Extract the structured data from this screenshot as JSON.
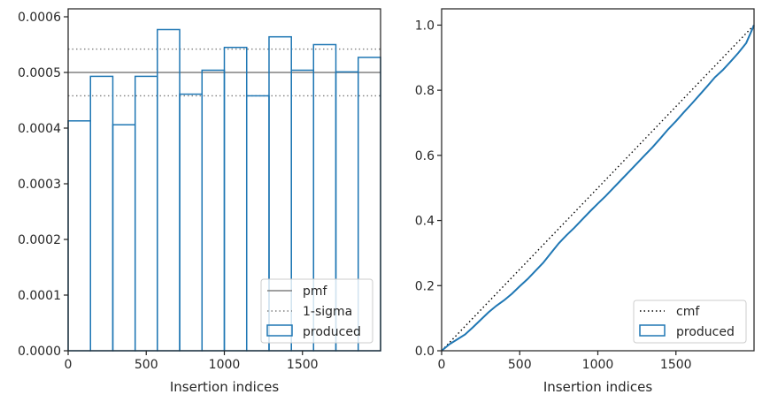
{
  "chart_data": [
    {
      "type": "step-histogram",
      "xlabel": "Insertion indices",
      "ylabel": "",
      "xlim": [
        0,
        2000
      ],
      "ylim": [
        0,
        0.0006
      ],
      "xticks": [
        0,
        500,
        1000,
        1500
      ],
      "xtick_labels": [
        "0",
        "500",
        "1000",
        "1500"
      ],
      "yticks": [
        0,
        0.0001,
        0.0002,
        0.0003,
        0.0004,
        0.0005,
        0.0006
      ],
      "ytick_labels": [
        "0.0000",
        "0.0001",
        "0.0002",
        "0.0003",
        "0.0004",
        "0.0005",
        "0.0006"
      ],
      "bin_edges": [
        0,
        143,
        286,
        429,
        571,
        714,
        857,
        1000,
        1143,
        1286,
        1429,
        1571,
        1714,
        1857,
        2000
      ],
      "series": [
        {
          "name": "produced",
          "style": "step",
          "color": "#1f77b4",
          "values": [
            0.000413,
            0.000493,
            0.000406,
            0.000493,
            0.000577,
            0.000461,
            0.000504,
            0.000545,
            0.000458,
            0.000564,
            0.000504,
            0.00055,
            0.000501,
            0.000527
          ]
        }
      ],
      "reference_lines": [
        {
          "name": "pmf",
          "y": 0.0005,
          "style": "solid",
          "color": "#808080"
        },
        {
          "name": "1-sigma",
          "y": 0.000542,
          "style": "dotted",
          "color": "#808080"
        },
        {
          "name": "",
          "y": 0.000458,
          "style": "dotted",
          "color": "#808080"
        }
      ],
      "legend": {
        "position": "lower-right",
        "entries": [
          "pmf",
          "1-sigma",
          "produced"
        ]
      },
      "grid": false
    },
    {
      "type": "line",
      "xlabel": "Insertion indices",
      "ylabel": "",
      "xlim": [
        0,
        2000
      ],
      "ylim": [
        0,
        1.05
      ],
      "xticks": [
        0,
        500,
        1000,
        1500
      ],
      "xtick_labels": [
        "0",
        "500",
        "1000",
        "1500"
      ],
      "yticks": [
        0,
        0.2,
        0.4,
        0.6,
        0.8,
        1.0
      ],
      "ytick_labels": [
        "0.0",
        "0.2",
        "0.4",
        "0.6",
        "0.8",
        "1.0"
      ],
      "series": [
        {
          "name": "cmf",
          "style": "dotted",
          "color": "#000000",
          "x": [
            0,
            2000
          ],
          "y": [
            0,
            1.0
          ]
        },
        {
          "name": "produced",
          "style": "solid",
          "color": "#1f77b4",
          "x": [
            0,
            50,
            100,
            150,
            200,
            250,
            300,
            350,
            400,
            450,
            500,
            550,
            600,
            650,
            700,
            750,
            800,
            850,
            900,
            950,
            1000,
            1050,
            1100,
            1150,
            1200,
            1250,
            1300,
            1350,
            1400,
            1450,
            1500,
            1550,
            1600,
            1650,
            1700,
            1750,
            1800,
            1850,
            1900,
            1950,
            2000
          ],
          "y": [
            0,
            0.02,
            0.035,
            0.05,
            0.072,
            0.095,
            0.118,
            0.138,
            0.155,
            0.175,
            0.198,
            0.22,
            0.245,
            0.27,
            0.3,
            0.33,
            0.355,
            0.378,
            0.403,
            0.428,
            0.452,
            0.475,
            0.5,
            0.525,
            0.55,
            0.575,
            0.6,
            0.625,
            0.652,
            0.68,
            0.705,
            0.732,
            0.758,
            0.785,
            0.812,
            0.84,
            0.862,
            0.888,
            0.915,
            0.945,
            1.0
          ]
        }
      ],
      "legend": {
        "position": "lower-right",
        "entries": [
          "cmf",
          "produced"
        ]
      },
      "grid": false
    }
  ]
}
